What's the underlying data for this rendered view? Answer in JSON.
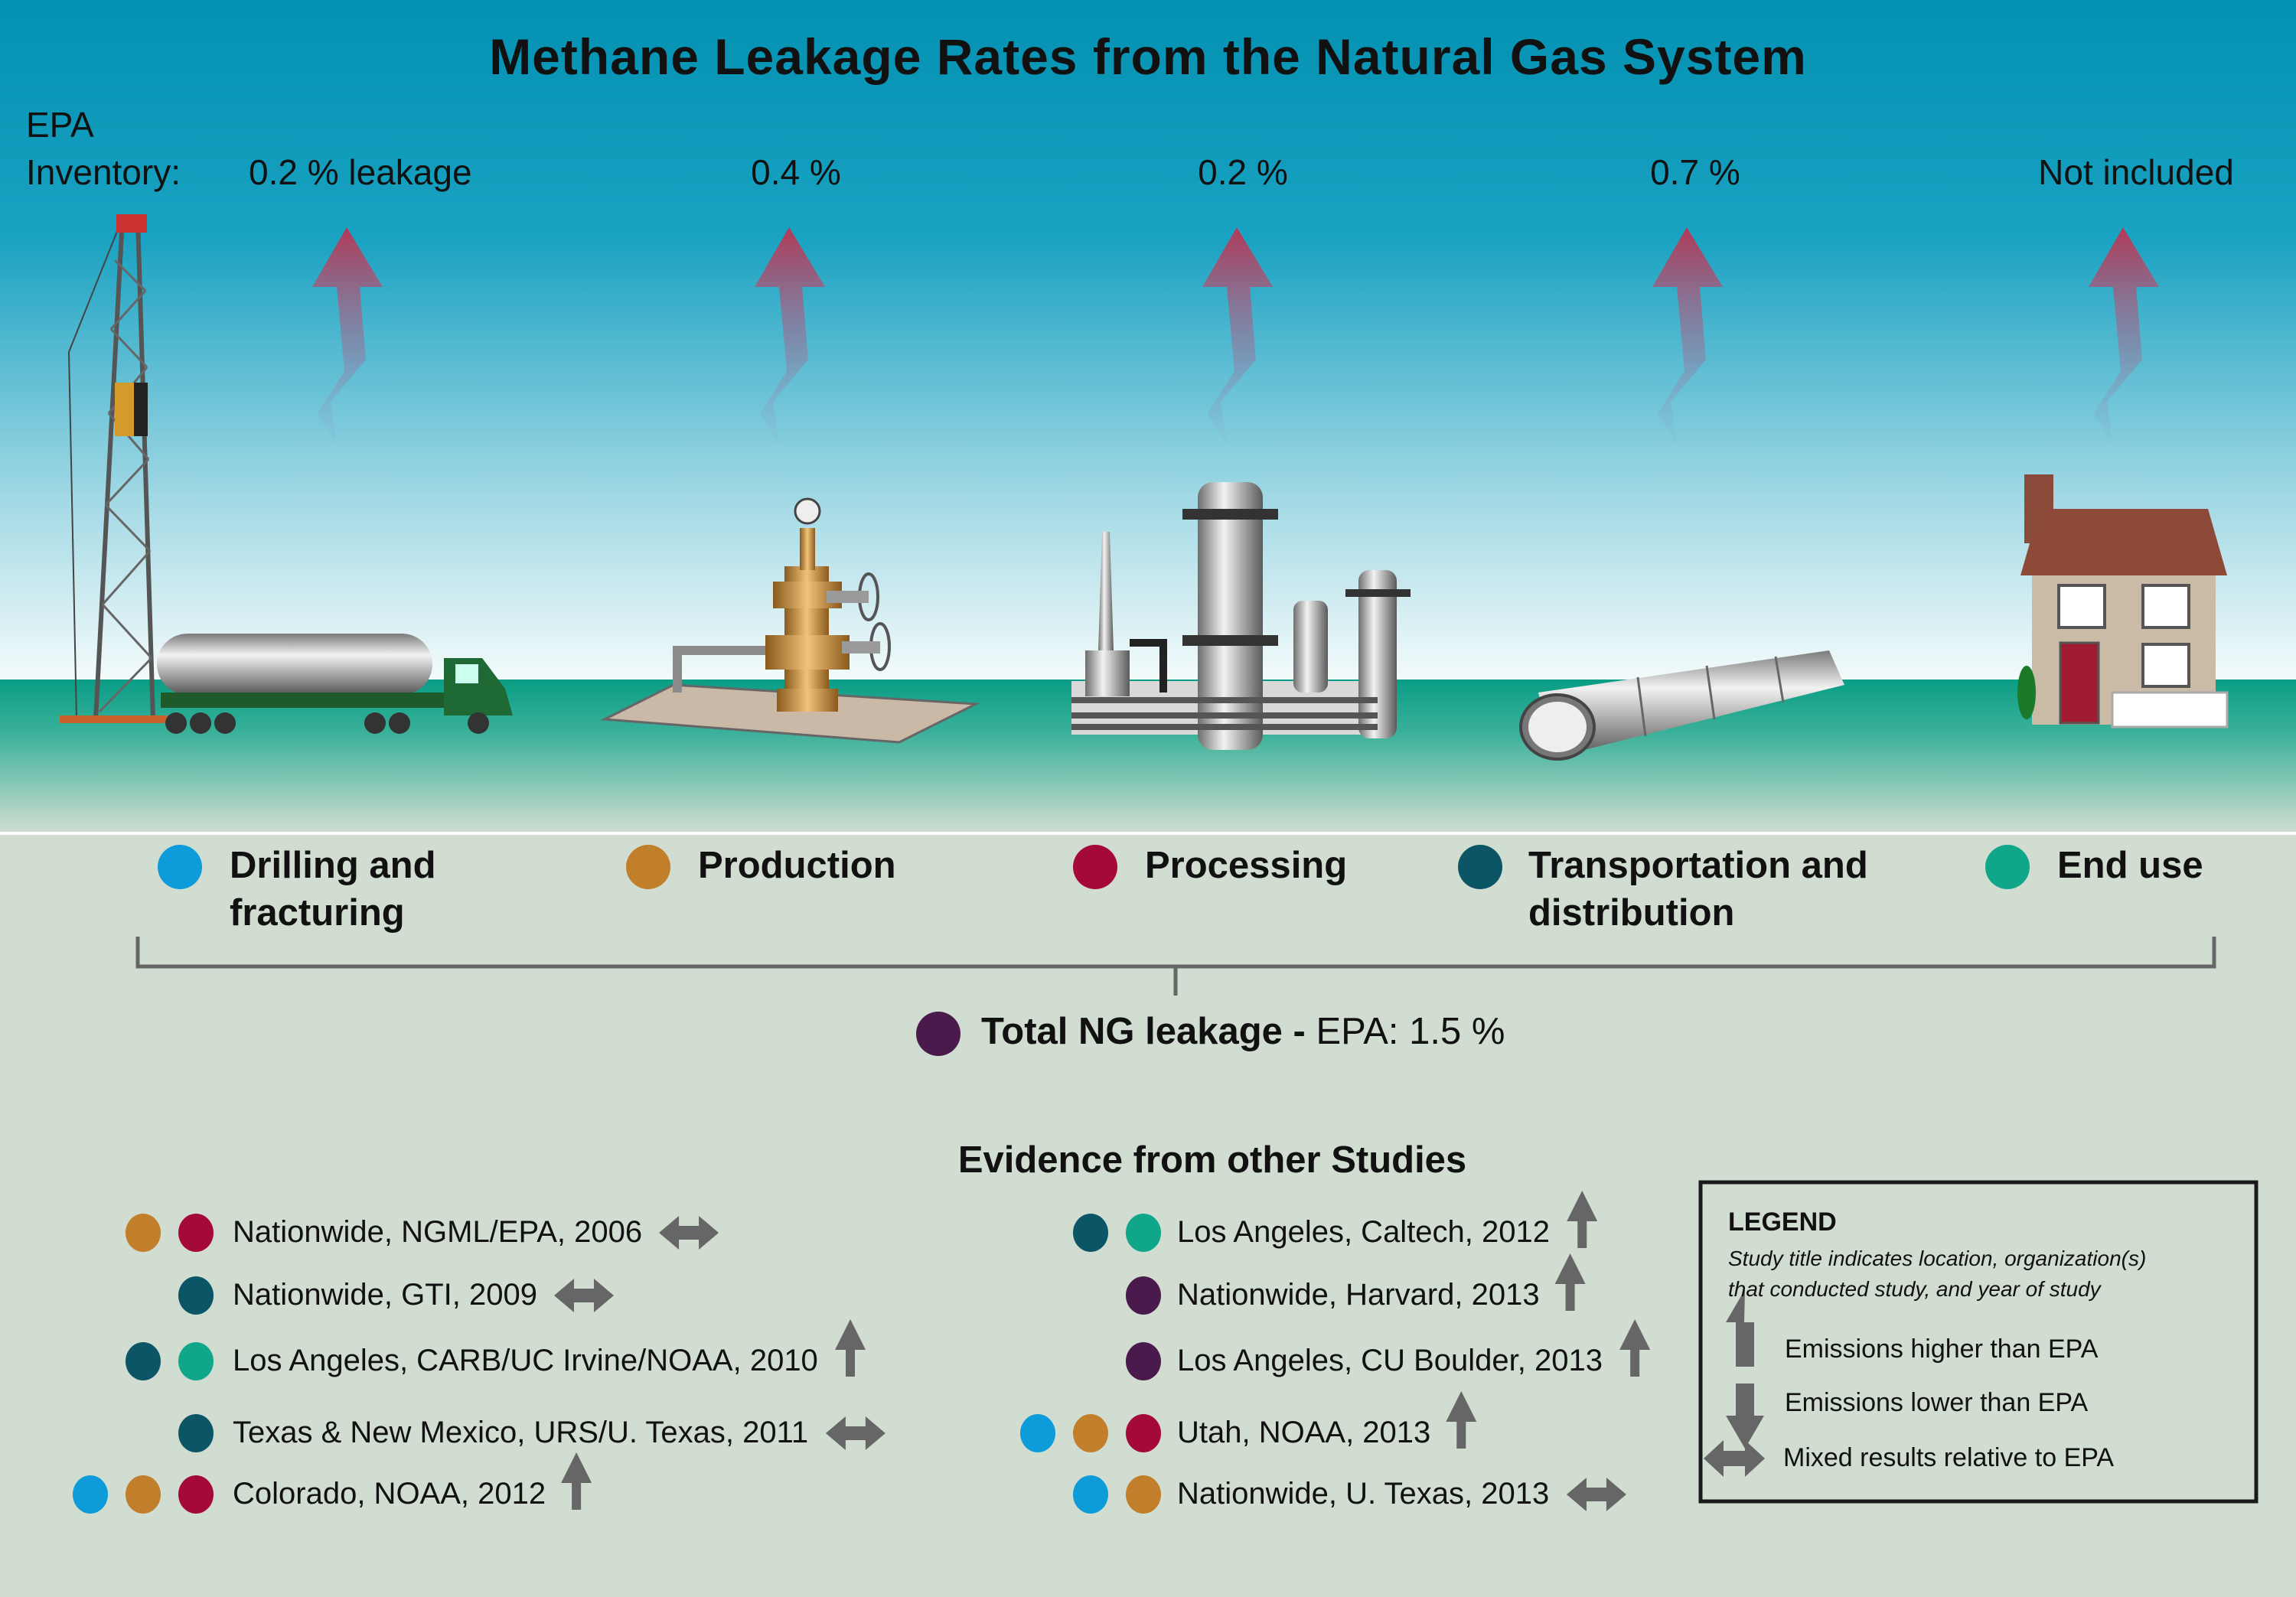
{
  "title": "Methane Leakage Rates from the Natural Gas System",
  "epa_inventory": {
    "label_line1": "EPA",
    "label_line2": "Inventory:",
    "values": [
      "0.2 % leakage",
      "0.4 %",
      "0.2 %",
      "0.7 %",
      "Not included"
    ]
  },
  "colors": {
    "drilling": "#0e9bd9",
    "production": "#c27f2b",
    "processing": "#a5093a",
    "transportation": "#0b5566",
    "end_use": "#10a68a",
    "total": "#4b1a4d",
    "arrow": "#666666",
    "emission_arrow": "#b0405a"
  },
  "stages": [
    {
      "label": "Drilling and fracturing",
      "color": "#0e9bd9"
    },
    {
      "label": "Production",
      "color": "#c27f2b"
    },
    {
      "label": "Processing",
      "color": "#a5093a"
    },
    {
      "label": "Transportation and distribution",
      "color": "#0b5566"
    },
    {
      "label": "End use",
      "color": "#10a68a"
    }
  ],
  "total": {
    "label_bold": "Total NG leakage -",
    "label_rest": "EPA: 1.5 %"
  },
  "evidence": {
    "heading": "Evidence from other Studies",
    "left": [
      {
        "text": "Nationwide, NGML/EPA, 2006",
        "stages": [
          "production",
          "processing"
        ],
        "result": "mixed"
      },
      {
        "text": "Nationwide, GTI, 2009",
        "stages": [
          "transportation"
        ],
        "result": "mixed"
      },
      {
        "text": "Los Angeles, CARB/UC Irvine/NOAA, 2010",
        "stages": [
          "transportation",
          "end_use"
        ],
        "result": "higher"
      },
      {
        "text": "Texas & New Mexico, URS/U. Texas, 2011",
        "stages": [
          "transportation"
        ],
        "result": "mixed"
      },
      {
        "text": "Colorado, NOAA, 2012",
        "stages": [
          "drilling",
          "production",
          "processing"
        ],
        "result": "higher"
      }
    ],
    "right": [
      {
        "text": "Los Angeles, Caltech, 2012",
        "stages": [
          "transportation",
          "end_use"
        ],
        "result": "higher"
      },
      {
        "text": "Nationwide, Harvard, 2013",
        "stages": [
          "total"
        ],
        "result": "higher"
      },
      {
        "text": "Los Angeles, CU Boulder, 2013",
        "stages": [
          "total"
        ],
        "result": "higher"
      },
      {
        "text": "Utah, NOAA, 2013",
        "stages": [
          "drilling",
          "production",
          "processing"
        ],
        "result": "higher"
      },
      {
        "text": "Nationwide, U. Texas, 2013",
        "stages": [
          "drilling",
          "production"
        ],
        "result": "mixed"
      }
    ]
  },
  "legend": {
    "title": "LEGEND",
    "desc_line1": "Study title indicates location, organization(s)",
    "desc_line2": "that conducted study, and year of study",
    "higher": "Emissions higher than EPA",
    "lower": "Emissions lower than EPA",
    "mixed": "Mixed results relative to EPA"
  }
}
